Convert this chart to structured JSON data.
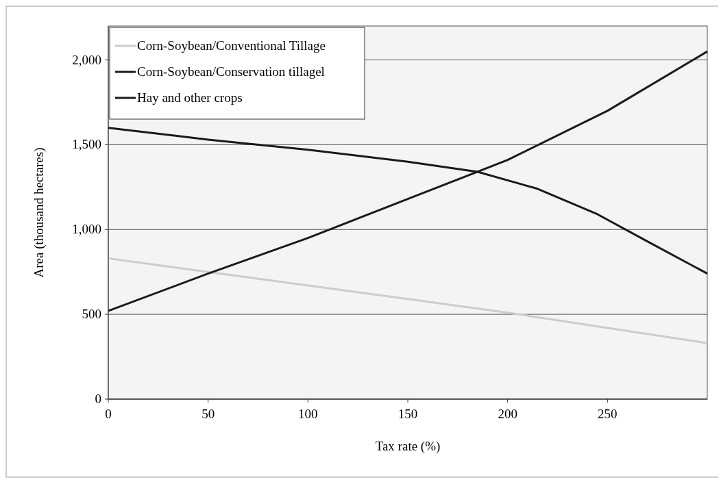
{
  "chart_data": {
    "type": "line",
    "xlabel": "Tax rate (%)",
    "ylabel": "Area (thousand hectares)",
    "xlim": [
      0,
      300
    ],
    "xticks": [
      0,
      50,
      100,
      150,
      200,
      250
    ],
    "ylim": [
      0,
      2200
    ],
    "yticks": [
      0,
      {
        "value": 500,
        "label": "500"
      },
      {
        "value": 1000,
        "label": "1,000"
      },
      {
        "value": 1500,
        "label": "1,500"
      },
      {
        "value": 2000,
        "label": "2,000"
      }
    ],
    "grid": "y",
    "legend": "top left",
    "line_style": "solid",
    "series": [
      {
        "name": "Corn-Soybean/Conventional Tillage",
        "color": "#cccccc",
        "x": [
          0,
          50,
          100,
          150,
          200,
          250,
          300
        ],
        "values": [
          830,
          750,
          670,
          590,
          510,
          420,
          330
        ]
      },
      {
        "name": "Corn-Soybean/Conservation tillagel",
        "color": "#1a1a1a",
        "x": [
          0,
          50,
          100,
          150,
          200,
          250,
          300
        ],
        "values": [
          520,
          740,
          950,
          1180,
          1410,
          1700,
          2050
        ]
      },
      {
        "name": "Hay and other crops",
        "color": "#1a1a1a",
        "x": [
          0,
          50,
          100,
          150,
          185,
          215,
          245,
          270,
          300
        ],
        "values": [
          1600,
          1530,
          1470,
          1400,
          1340,
          1240,
          1090,
          930,
          740
        ]
      }
    ]
  }
}
